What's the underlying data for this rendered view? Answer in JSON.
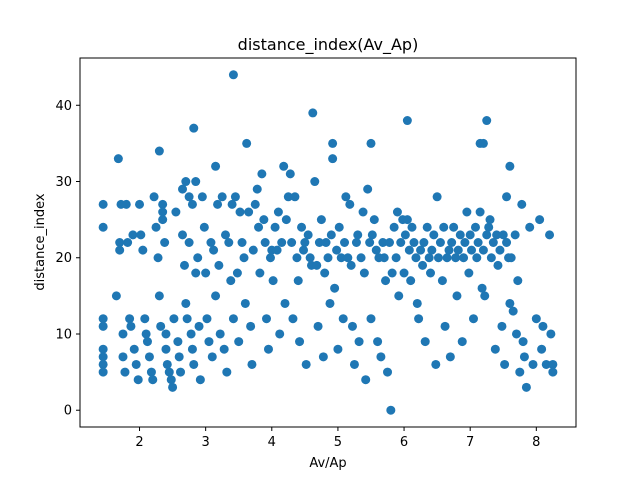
{
  "chart_data": {
    "type": "scatter",
    "title": "distance_index(Av_Ap)",
    "xlabel": "Av/Ap",
    "ylabel": "distance_index",
    "xlim": [
      1.1,
      8.6
    ],
    "ylim": [
      -2.2,
      46.2
    ],
    "xticks": [
      2,
      3,
      4,
      5,
      6,
      7,
      8
    ],
    "yticks": [
      0,
      10,
      20,
      30,
      40
    ],
    "grid": false,
    "legend": "none",
    "marker_color": "#1f77b4",
    "points": [
      [
        1.45,
        27
      ],
      [
        1.45,
        24
      ],
      [
        1.45,
        12
      ],
      [
        1.45,
        11
      ],
      [
        1.45,
        8
      ],
      [
        1.45,
        7
      ],
      [
        1.45,
        6
      ],
      [
        1.45,
        5
      ],
      [
        1.65,
        15
      ],
      [
        1.68,
        33
      ],
      [
        1.7,
        22
      ],
      [
        1.7,
        21
      ],
      [
        1.72,
        27
      ],
      [
        1.75,
        10
      ],
      [
        1.75,
        7
      ],
      [
        1.78,
        5
      ],
      [
        1.8,
        27
      ],
      [
        1.82,
        22
      ],
      [
        1.85,
        12
      ],
      [
        1.87,
        11
      ],
      [
        1.9,
        23
      ],
      [
        1.92,
        8
      ],
      [
        1.95,
        6
      ],
      [
        1.98,
        4
      ],
      [
        2.0,
        27
      ],
      [
        2.02,
        23
      ],
      [
        2.05,
        21
      ],
      [
        2.08,
        12
      ],
      [
        2.1,
        10
      ],
      [
        2.12,
        9
      ],
      [
        2.15,
        7
      ],
      [
        2.18,
        5
      ],
      [
        2.2,
        4
      ],
      [
        2.22,
        28
      ],
      [
        2.25,
        24
      ],
      [
        2.28,
        20
      ],
      [
        2.3,
        34
      ],
      [
        2.3,
        15
      ],
      [
        2.32,
        11
      ],
      [
        2.35,
        27
      ],
      [
        2.35,
        26
      ],
      [
        2.35,
        25
      ],
      [
        2.38,
        22
      ],
      [
        2.4,
        10
      ],
      [
        2.4,
        8
      ],
      [
        2.42,
        6
      ],
      [
        2.45,
        5
      ],
      [
        2.48,
        4
      ],
      [
        2.5,
        3
      ],
      [
        2.52,
        12
      ],
      [
        2.55,
        26
      ],
      [
        2.58,
        9
      ],
      [
        2.6,
        7
      ],
      [
        2.62,
        5
      ],
      [
        2.65,
        29
      ],
      [
        2.65,
        23
      ],
      [
        2.68,
        19
      ],
      [
        2.7,
        30
      ],
      [
        2.7,
        14
      ],
      [
        2.72,
        12
      ],
      [
        2.75,
        28
      ],
      [
        2.75,
        22
      ],
      [
        2.78,
        10
      ],
      [
        2.8,
        27
      ],
      [
        2.8,
        8
      ],
      [
        2.82,
        37
      ],
      [
        2.82,
        6
      ],
      [
        2.85,
        30
      ],
      [
        2.85,
        18
      ],
      [
        2.88,
        20
      ],
      [
        2.9,
        11
      ],
      [
        2.92,
        4
      ],
      [
        2.95,
        28
      ],
      [
        2.98,
        24
      ],
      [
        3.0,
        18
      ],
      [
        3.02,
        12
      ],
      [
        3.05,
        9
      ],
      [
        3.08,
        22
      ],
      [
        3.1,
        7
      ],
      [
        3.12,
        21
      ],
      [
        3.15,
        32
      ],
      [
        3.15,
        15
      ],
      [
        3.18,
        27
      ],
      [
        3.2,
        19
      ],
      [
        3.22,
        10
      ],
      [
        3.25,
        28
      ],
      [
        3.28,
        8
      ],
      [
        3.3,
        23
      ],
      [
        3.32,
        5
      ],
      [
        3.35,
        22
      ],
      [
        3.38,
        17
      ],
      [
        3.4,
        27
      ],
      [
        3.42,
        44
      ],
      [
        3.42,
        12
      ],
      [
        3.45,
        28
      ],
      [
        3.48,
        18
      ],
      [
        3.5,
        9
      ],
      [
        3.52,
        26
      ],
      [
        3.55,
        22
      ],
      [
        3.58,
        20
      ],
      [
        3.6,
        14
      ],
      [
        3.62,
        35
      ],
      [
        3.65,
        26
      ],
      [
        3.68,
        11
      ],
      [
        3.7,
        6
      ],
      [
        3.72,
        21
      ],
      [
        3.75,
        27
      ],
      [
        3.78,
        29
      ],
      [
        3.8,
        24
      ],
      [
        3.82,
        18
      ],
      [
        3.85,
        31
      ],
      [
        3.88,
        25
      ],
      [
        3.9,
        22
      ],
      [
        3.92,
        12
      ],
      [
        3.95,
        8
      ],
      [
        3.98,
        20
      ],
      [
        4.0,
        21
      ],
      [
        4.02,
        17
      ],
      [
        4.05,
        24
      ],
      [
        4.08,
        21
      ],
      [
        4.1,
        26
      ],
      [
        4.12,
        10
      ],
      [
        4.15,
        22
      ],
      [
        4.18,
        32
      ],
      [
        4.2,
        14
      ],
      [
        4.22,
        25
      ],
      [
        4.25,
        28
      ],
      [
        4.28,
        31
      ],
      [
        4.3,
        22
      ],
      [
        4.32,
        12
      ],
      [
        4.35,
        28
      ],
      [
        4.38,
        20
      ],
      [
        4.4,
        17
      ],
      [
        4.42,
        9
      ],
      [
        4.45,
        24
      ],
      [
        4.48,
        21
      ],
      [
        4.5,
        22
      ],
      [
        4.52,
        6
      ],
      [
        4.55,
        23
      ],
      [
        4.58,
        20
      ],
      [
        4.6,
        19
      ],
      [
        4.62,
        39
      ],
      [
        4.65,
        30
      ],
      [
        4.68,
        19
      ],
      [
        4.7,
        11
      ],
      [
        4.72,
        22
      ],
      [
        4.75,
        25
      ],
      [
        4.78,
        7
      ],
      [
        4.8,
        18
      ],
      [
        4.82,
        22
      ],
      [
        4.85,
        20
      ],
      [
        4.88,
        14
      ],
      [
        4.9,
        23
      ],
      [
        4.92,
        35
      ],
      [
        4.92,
        33
      ],
      [
        4.95,
        16
      ],
      [
        4.98,
        21
      ],
      [
        5.0,
        8
      ],
      [
        5.02,
        24
      ],
      [
        5.05,
        20
      ],
      [
        5.08,
        12
      ],
      [
        5.1,
        22
      ],
      [
        5.12,
        28
      ],
      [
        5.15,
        20
      ],
      [
        5.18,
        27
      ],
      [
        5.2,
        19
      ],
      [
        5.22,
        11
      ],
      [
        5.25,
        6
      ],
      [
        5.28,
        22
      ],
      [
        5.3,
        23
      ],
      [
        5.32,
        9
      ],
      [
        5.35,
        20
      ],
      [
        5.38,
        26
      ],
      [
        5.4,
        18
      ],
      [
        5.42,
        4
      ],
      [
        5.45,
        29
      ],
      [
        5.48,
        22
      ],
      [
        5.5,
        35
      ],
      [
        5.5,
        12
      ],
      [
        5.52,
        23
      ],
      [
        5.55,
        25
      ],
      [
        5.58,
        21
      ],
      [
        5.6,
        9
      ],
      [
        5.62,
        20
      ],
      [
        5.65,
        7
      ],
      [
        5.68,
        22
      ],
      [
        5.7,
        20
      ],
      [
        5.72,
        17
      ],
      [
        5.75,
        5
      ],
      [
        5.78,
        22
      ],
      [
        5.8,
        0
      ],
      [
        5.82,
        18
      ],
      [
        5.85,
        24
      ],
      [
        5.88,
        20
      ],
      [
        5.9,
        26
      ],
      [
        5.92,
        15
      ],
      [
        5.95,
        22
      ],
      [
        5.98,
        25
      ],
      [
        6.0,
        18
      ],
      [
        6.02,
        23
      ],
      [
        6.05,
        38
      ],
      [
        6.05,
        25
      ],
      [
        6.08,
        21
      ],
      [
        6.1,
        17
      ],
      [
        6.12,
        24
      ],
      [
        6.15,
        22
      ],
      [
        6.18,
        20
      ],
      [
        6.2,
        14
      ],
      [
        6.22,
        12
      ],
      [
        6.25,
        21
      ],
      [
        6.28,
        19
      ],
      [
        6.3,
        22
      ],
      [
        6.32,
        9
      ],
      [
        6.35,
        24
      ],
      [
        6.38,
        20
      ],
      [
        6.4,
        18
      ],
      [
        6.42,
        21
      ],
      [
        6.45,
        23
      ],
      [
        6.48,
        6
      ],
      [
        6.5,
        28
      ],
      [
        6.52,
        20
      ],
      [
        6.55,
        22
      ],
      [
        6.58,
        17
      ],
      [
        6.6,
        24
      ],
      [
        6.62,
        11
      ],
      [
        6.65,
        20
      ],
      [
        6.68,
        21
      ],
      [
        6.7,
        7
      ],
      [
        6.72,
        22
      ],
      [
        6.75,
        24
      ],
      [
        6.78,
        20
      ],
      [
        6.8,
        15
      ],
      [
        6.82,
        21
      ],
      [
        6.85,
        23
      ],
      [
        6.88,
        9
      ],
      [
        6.9,
        20
      ],
      [
        6.92,
        22
      ],
      [
        6.95,
        26
      ],
      [
        6.98,
        18
      ],
      [
        7.0,
        23
      ],
      [
        7.02,
        21
      ],
      [
        7.05,
        12
      ],
      [
        7.08,
        24
      ],
      [
        7.1,
        20
      ],
      [
        7.12,
        22
      ],
      [
        7.15,
        35
      ],
      [
        7.15,
        26
      ],
      [
        7.18,
        16
      ],
      [
        7.2,
        35
      ],
      [
        7.2,
        21
      ],
      [
        7.22,
        15
      ],
      [
        7.25,
        38
      ],
      [
        7.25,
        23
      ],
      [
        7.28,
        24
      ],
      [
        7.3,
        25
      ],
      [
        7.32,
        20
      ],
      [
        7.35,
        22
      ],
      [
        7.38,
        8
      ],
      [
        7.4,
        23
      ],
      [
        7.42,
        19
      ],
      [
        7.45,
        21
      ],
      [
        7.48,
        11
      ],
      [
        7.5,
        23
      ],
      [
        7.52,
        6
      ],
      [
        7.55,
        28
      ],
      [
        7.55,
        22
      ],
      [
        7.58,
        20
      ],
      [
        7.6,
        32
      ],
      [
        7.6,
        14
      ],
      [
        7.62,
        20
      ],
      [
        7.65,
        13
      ],
      [
        7.68,
        23
      ],
      [
        7.7,
        10
      ],
      [
        7.72,
        17
      ],
      [
        7.75,
        5
      ],
      [
        7.78,
        27
      ],
      [
        7.8,
        9
      ],
      [
        7.82,
        7
      ],
      [
        7.85,
        3
      ],
      [
        7.9,
        24
      ],
      [
        7.95,
        6
      ],
      [
        8.0,
        12
      ],
      [
        8.05,
        25
      ],
      [
        8.08,
        8
      ],
      [
        8.1,
        11
      ],
      [
        8.15,
        6
      ],
      [
        8.2,
        23
      ],
      [
        8.22,
        10
      ],
      [
        8.25,
        5
      ],
      [
        8.25,
        6
      ]
    ]
  }
}
